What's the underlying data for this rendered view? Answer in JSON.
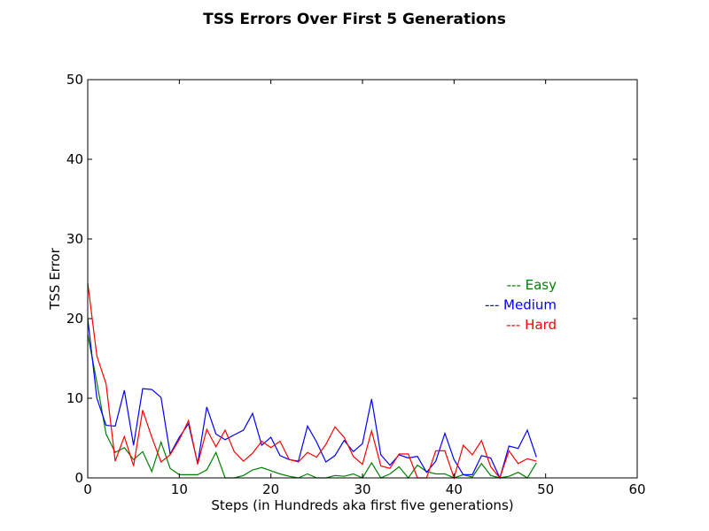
{
  "chart_data": {
    "type": "line",
    "title": "TSS Errors Over First 5 Generations",
    "xlabel": "Steps (in Hundreds aka first five generations)",
    "ylabel": "TSS Error",
    "xlim": [
      0,
      60
    ],
    "ylim": [
      0,
      50
    ],
    "xticks": [
      "0",
      "10",
      "20",
      "30",
      "40",
      "50",
      "60"
    ],
    "yticks": [
      "0",
      "10",
      "20",
      "30",
      "40",
      "50"
    ],
    "grid": false,
    "legend_position": "right",
    "x": [
      0,
      1,
      2,
      3,
      4,
      5,
      6,
      7,
      8,
      9,
      10,
      11,
      12,
      13,
      14,
      15,
      16,
      17,
      18,
      19,
      20,
      21,
      22,
      23,
      24,
      25,
      26,
      27,
      28,
      29,
      30,
      31,
      32,
      33,
      34,
      35,
      36,
      37,
      38,
      39,
      40,
      41,
      42,
      43,
      44,
      45,
      46,
      47,
      48,
      49
    ],
    "series": [
      {
        "name": "--- Easy",
        "color": "#008000",
        "values": [
          18,
          12,
          5.5,
          3.2,
          3.8,
          2.3,
          3.3,
          0.8,
          4.5,
          1.2,
          0.4,
          0.4,
          0.4,
          1.0,
          3.2,
          0,
          0,
          0.3,
          1.0,
          1.3,
          0.9,
          0.5,
          0.2,
          0,
          0.5,
          0,
          0,
          0.3,
          0.2,
          0.5,
          0,
          1.9,
          0,
          0.5,
          1.4,
          0,
          1.6,
          0.8,
          0.5,
          0.5,
          0,
          0.4,
          0.1,
          1.8,
          0.3,
          0,
          0.2,
          0.7,
          0,
          1.9
        ]
      },
      {
        "name": "--- Medium",
        "color": "#0000ff",
        "values": [
          20,
          10,
          6.6,
          6.5,
          11,
          4.1,
          11.2,
          11.1,
          10.1,
          3.0,
          5.1,
          6.8,
          1.8,
          8.9,
          5.5,
          4.8,
          5.4,
          6.0,
          8.1,
          4.1,
          5.1,
          2.8,
          2.3,
          2.1,
          6.5,
          4.5,
          2.0,
          2.8,
          4.7,
          3.3,
          4.3,
          9.9,
          2.9,
          1.6,
          2.9,
          2.5,
          2.7,
          0.7,
          2.1,
          5.6,
          2.3,
          0.4,
          0.4,
          2.8,
          2.5,
          0,
          4.0,
          3.7,
          6.0,
          2.6
        ]
      },
      {
        "name": "--- Hard",
        "color": "#ff0000",
        "values": [
          24.5,
          15.3,
          11.8,
          2.1,
          5.2,
          1.5,
          8.5,
          5.1,
          2.0,
          2.9,
          4.8,
          7.2,
          1.7,
          6.1,
          3.9,
          6.0,
          3.3,
          2.1,
          3.1,
          4.6,
          3.8,
          4.6,
          2.3,
          2.0,
          3.2,
          2.6,
          4.2,
          6.4,
          5.1,
          2.7,
          1.7,
          5.9,
          1.5,
          1.2,
          3.0,
          3.0,
          0,
          0,
          3.4,
          3.4,
          0,
          4.1,
          2.9,
          4.7,
          1.4,
          0,
          3.4,
          1.8,
          2.4,
          2.1
        ]
      }
    ]
  }
}
